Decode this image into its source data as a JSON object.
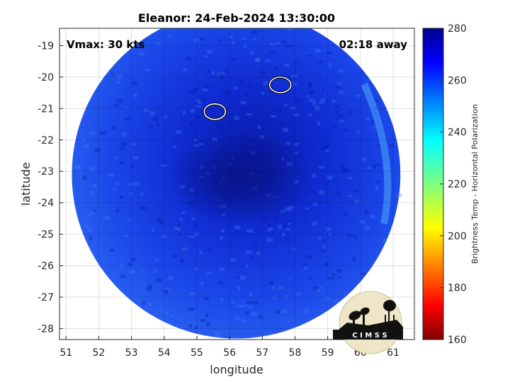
{
  "chart_data": {
    "type": "heatmap",
    "title": "Eleanor: 24-Feb-2024 13:30:00",
    "xlabel": "longitude",
    "ylabel": "latitude",
    "xlim": [
      50.8,
      61.65
    ],
    "ylim": [
      -28.35,
      -18.45
    ],
    "xticks": [
      51,
      52,
      53,
      54,
      55,
      56,
      57,
      58,
      59,
      60,
      61
    ],
    "yticks": [
      -19,
      -20,
      -21,
      -22,
      -23,
      -24,
      -25,
      -26,
      -27,
      -28
    ],
    "grid": true,
    "colorbar": {
      "label": "Brightness Temp - Horizontal Polarization",
      "range": [
        160,
        280
      ],
      "ticks": [
        280,
        260,
        240,
        220,
        200,
        180,
        160
      ],
      "colormap": "jet"
    },
    "annotations": {
      "left": "Vmax: 30 kts",
      "right": "02:18 away"
    },
    "swath": {
      "center_lon": 56.2,
      "center_lat": -23.1,
      "radius_deg": 5.4
    },
    "storm_center": {
      "lon": 56.3,
      "lat": -23.2
    },
    "contours": [
      {
        "lon": 55.55,
        "lat": -21.1
      },
      {
        "lon": 57.55,
        "lat": -20.25
      }
    ],
    "logo_text": "C I M S S"
  }
}
